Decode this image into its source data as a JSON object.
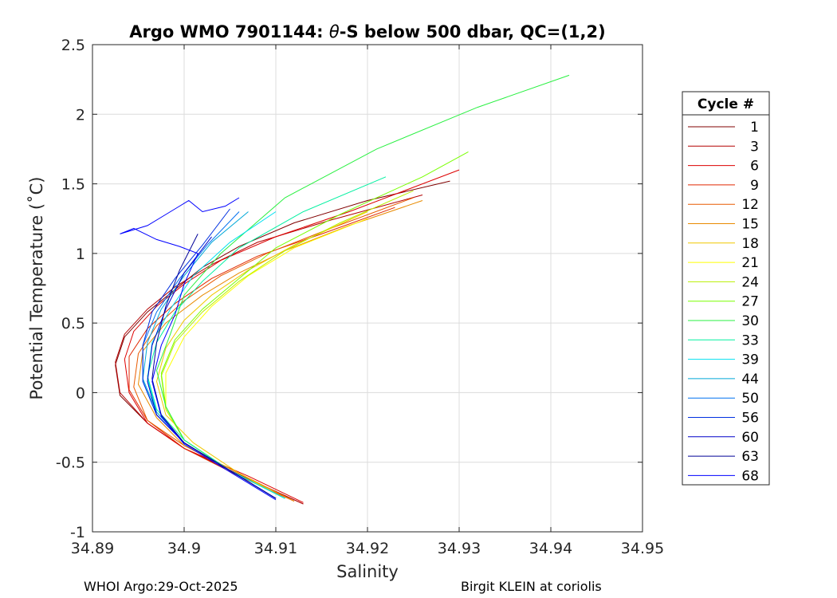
{
  "chart_data": {
    "type": "line",
    "title_prefix": "Argo WMO 7901144: ",
    "title_theta": "θ",
    "title_suffix": "-S below 500 dbar,  QC=(1,2)",
    "xlabel": "Salinity",
    "ylabel": "Potential Temperature (˚C)",
    "xlim": [
      34.89,
      34.95
    ],
    "ylim": [
      -1,
      2.5
    ],
    "xticks": [
      34.89,
      34.9,
      34.91,
      34.92,
      34.93,
      34.94,
      34.95
    ],
    "xtick_labels": [
      "34.89",
      "34.9",
      "34.91",
      "34.92",
      "34.93",
      "34.94",
      "34.95"
    ],
    "yticks": [
      2.5,
      2,
      1.5,
      1,
      0.5,
      0,
      -0.5,
      -1
    ],
    "ytick_labels": [
      "2.5",
      "2",
      "1.5",
      "1",
      "0.5",
      "0",
      "-0.5",
      "-1"
    ],
    "grid": true,
    "legend": {
      "title": "Cycle #",
      "placement": "outside-right",
      "entries": [
        {
          "label": "1",
          "color": "#800000"
        },
        {
          "label": "3",
          "color": "#b30000"
        },
        {
          "label": "6",
          "color": "#dd0000"
        },
        {
          "label": "9",
          "color": "#e02800"
        },
        {
          "label": "12",
          "color": "#e85a00"
        },
        {
          "label": "15",
          "color": "#e88a00"
        },
        {
          "label": "18",
          "color": "#f0c800"
        },
        {
          "label": "21",
          "color": "#ffff00"
        },
        {
          "label": "24",
          "color": "#b8f000"
        },
        {
          "label": "27",
          "color": "#78ff00"
        },
        {
          "label": "30",
          "color": "#28f040"
        },
        {
          "label": "33",
          "color": "#00f0a0"
        },
        {
          "label": "39",
          "color": "#00e0f0"
        },
        {
          "label": "44",
          "color": "#00a8d8"
        },
        {
          "label": "50",
          "color": "#0070f0"
        },
        {
          "label": "56",
          "color": "#0030e0"
        },
        {
          "label": "60",
          "color": "#0000c8"
        },
        {
          "label": "63",
          "color": "#000098"
        },
        {
          "label": "68",
          "color": "#0000ff"
        }
      ]
    },
    "series": [
      {
        "name": "1",
        "x": [
          34.913,
          34.907,
          34.9,
          34.896,
          34.893,
          34.8925,
          34.8935,
          34.896,
          34.899,
          34.902,
          34.906,
          34.912,
          34.92,
          34.929
        ],
        "y": [
          -0.8,
          -0.62,
          -0.4,
          -0.22,
          -0.02,
          0.2,
          0.4,
          0.58,
          0.74,
          0.9,
          1.05,
          1.22,
          1.38,
          1.52
        ]
      },
      {
        "name": "3",
        "x": [
          34.913,
          34.907,
          34.9,
          34.896,
          34.893,
          34.8925,
          34.8935,
          34.896,
          34.899,
          34.903,
          34.908,
          34.916,
          34.926
        ],
        "y": [
          -0.8,
          -0.62,
          -0.4,
          -0.22,
          0.0,
          0.22,
          0.42,
          0.6,
          0.76,
          0.92,
          1.08,
          1.24,
          1.42
        ]
      },
      {
        "name": "6",
        "x": [
          34.913,
          34.907,
          34.9,
          34.896,
          34.894,
          34.8935,
          34.8945,
          34.897,
          34.9,
          34.904,
          34.91,
          34.918,
          34.93
        ],
        "y": [
          -0.79,
          -0.6,
          -0.4,
          -0.22,
          0.0,
          0.24,
          0.44,
          0.62,
          0.78,
          0.95,
          1.12,
          1.3,
          1.6
        ]
      },
      {
        "name": "9",
        "x": [
          34.912,
          34.906,
          34.9,
          34.896,
          34.894,
          34.894,
          34.896,
          34.899,
          34.903,
          34.908,
          34.915,
          34.923
        ],
        "y": [
          -0.78,
          -0.6,
          -0.4,
          -0.2,
          0.02,
          0.26,
          0.46,
          0.64,
          0.82,
          0.98,
          1.14,
          1.33
        ]
      },
      {
        "name": "12",
        "x": [
          34.912,
          34.906,
          34.9,
          34.896,
          34.8945,
          34.895,
          34.897,
          34.9,
          34.904,
          34.909,
          34.916,
          34.925
        ],
        "y": [
          -0.78,
          -0.58,
          -0.38,
          -0.2,
          0.04,
          0.28,
          0.48,
          0.66,
          0.84,
          1.0,
          1.18,
          1.4
        ]
      },
      {
        "name": "15",
        "x": [
          34.912,
          34.906,
          34.9,
          34.897,
          34.895,
          34.8955,
          34.898,
          34.902,
          34.906,
          34.911,
          34.918,
          34.926
        ],
        "y": [
          -0.78,
          -0.58,
          -0.38,
          -0.18,
          0.06,
          0.3,
          0.5,
          0.7,
          0.86,
          1.02,
          1.2,
          1.38
        ]
      },
      {
        "name": "18",
        "x": [
          34.911,
          34.906,
          34.901,
          34.898,
          34.897,
          34.898,
          34.9,
          34.903,
          34.907,
          34.912,
          34.92
        ],
        "y": [
          -0.76,
          -0.58,
          -0.36,
          -0.16,
          0.08,
          0.32,
          0.52,
          0.7,
          0.88,
          1.06,
          1.3
        ]
      },
      {
        "name": "21",
        "x": [
          34.911,
          34.905,
          34.9,
          34.898,
          34.898,
          34.9,
          34.903,
          34.907,
          34.912,
          34.92
        ],
        "y": [
          -0.76,
          -0.56,
          -0.34,
          -0.12,
          0.14,
          0.4,
          0.62,
          0.84,
          1.04,
          1.25
        ]
      },
      {
        "name": "24",
        "x": [
          34.911,
          34.905,
          34.9,
          34.898,
          34.8975,
          34.899,
          34.902,
          34.906,
          34.911,
          34.917,
          34.925
        ],
        "y": [
          -0.76,
          -0.56,
          -0.34,
          -0.12,
          0.12,
          0.36,
          0.58,
          0.8,
          1.02,
          1.22,
          1.45
        ]
      },
      {
        "name": "27",
        "x": [
          34.911,
          34.905,
          34.9,
          34.898,
          34.8975,
          34.899,
          34.902,
          34.906,
          34.91,
          34.917,
          34.926,
          34.931
        ],
        "y": [
          -0.76,
          -0.56,
          -0.34,
          -0.1,
          0.14,
          0.38,
          0.6,
          0.82,
          1.04,
          1.28,
          1.55,
          1.73
        ]
      },
      {
        "name": "30",
        "x": [
          34.911,
          34.905,
          34.9,
          34.898,
          34.897,
          34.8985,
          34.9,
          34.904,
          34.911,
          34.921,
          34.932,
          34.942
        ],
        "y": [
          -0.76,
          -0.56,
          -0.34,
          -0.1,
          0.16,
          0.42,
          0.7,
          1.0,
          1.4,
          1.75,
          2.05,
          2.28
        ]
      },
      {
        "name": "33",
        "x": [
          34.911,
          34.905,
          34.9,
          34.897,
          34.896,
          34.897,
          34.899,
          34.902,
          34.906,
          34.913,
          34.922
        ],
        "y": [
          -0.76,
          -0.56,
          -0.34,
          -0.12,
          0.12,
          0.36,
          0.58,
          0.8,
          1.04,
          1.3,
          1.55
        ]
      },
      {
        "name": "39",
        "x": [
          34.911,
          34.905,
          34.9,
          34.897,
          34.896,
          34.8965,
          34.8985,
          34.901,
          34.905,
          34.91
        ],
        "y": [
          -0.76,
          -0.56,
          -0.36,
          -0.14,
          0.1,
          0.36,
          0.6,
          0.84,
          1.08,
          1.3
        ]
      },
      {
        "name": "44",
        "x": [
          34.91,
          34.905,
          34.9,
          34.897,
          34.8955,
          34.896,
          34.8975,
          34.9,
          34.903,
          34.907
        ],
        "y": [
          -0.76,
          -0.56,
          -0.36,
          -0.14,
          0.1,
          0.36,
          0.6,
          0.84,
          1.08,
          1.3
        ]
      },
      {
        "name": "50",
        "x": [
          34.91,
          34.905,
          34.9,
          34.897,
          34.8955,
          34.8955,
          34.897,
          34.8995,
          34.9025,
          34.906
        ],
        "y": [
          -0.76,
          -0.56,
          -0.36,
          -0.16,
          0.08,
          0.34,
          0.58,
          0.82,
          1.06,
          1.3
        ]
      },
      {
        "name": "56",
        "x": [
          34.91,
          34.905,
          34.9,
          34.897,
          34.8955,
          34.8955,
          34.8965,
          34.899,
          34.902,
          34.905
        ],
        "y": [
          -0.76,
          -0.56,
          -0.36,
          -0.16,
          0.08,
          0.34,
          0.58,
          0.82,
          1.06,
          1.32
        ]
      },
      {
        "name": "60",
        "x": [
          34.91,
          34.905,
          34.9,
          34.897,
          34.896,
          34.8965,
          34.898,
          34.9,
          34.903
        ],
        "y": [
          -0.76,
          -0.56,
          -0.36,
          -0.16,
          0.08,
          0.34,
          0.6,
          0.86,
          1.12
        ]
      },
      {
        "name": "63",
        "x": [
          34.91,
          34.905,
          34.9,
          34.8975,
          34.8965,
          34.897,
          34.898,
          34.8995,
          34.9015
        ],
        "y": [
          -0.76,
          -0.56,
          -0.36,
          -0.16,
          0.1,
          0.36,
          0.62,
          0.88,
          1.14
        ]
      },
      {
        "name": "68",
        "x": [
          34.91,
          34.905,
          34.9,
          34.8975,
          34.8965,
          34.8975,
          34.899,
          34.9,
          34.9015,
          34.8995,
          34.897,
          34.8945,
          34.893,
          34.896,
          34.898,
          34.8995,
          34.9005,
          34.902,
          34.9045,
          34.906
        ],
        "y": [
          -0.77,
          -0.57,
          -0.37,
          -0.17,
          0.08,
          0.34,
          0.56,
          0.78,
          1.0,
          1.05,
          1.1,
          1.18,
          1.14,
          1.2,
          1.28,
          1.34,
          1.38,
          1.3,
          1.34,
          1.4
        ]
      }
    ]
  },
  "footer": {
    "left": "WHOI Argo:29-Oct-2025",
    "right": "Birgit KLEIN at coriolis"
  }
}
